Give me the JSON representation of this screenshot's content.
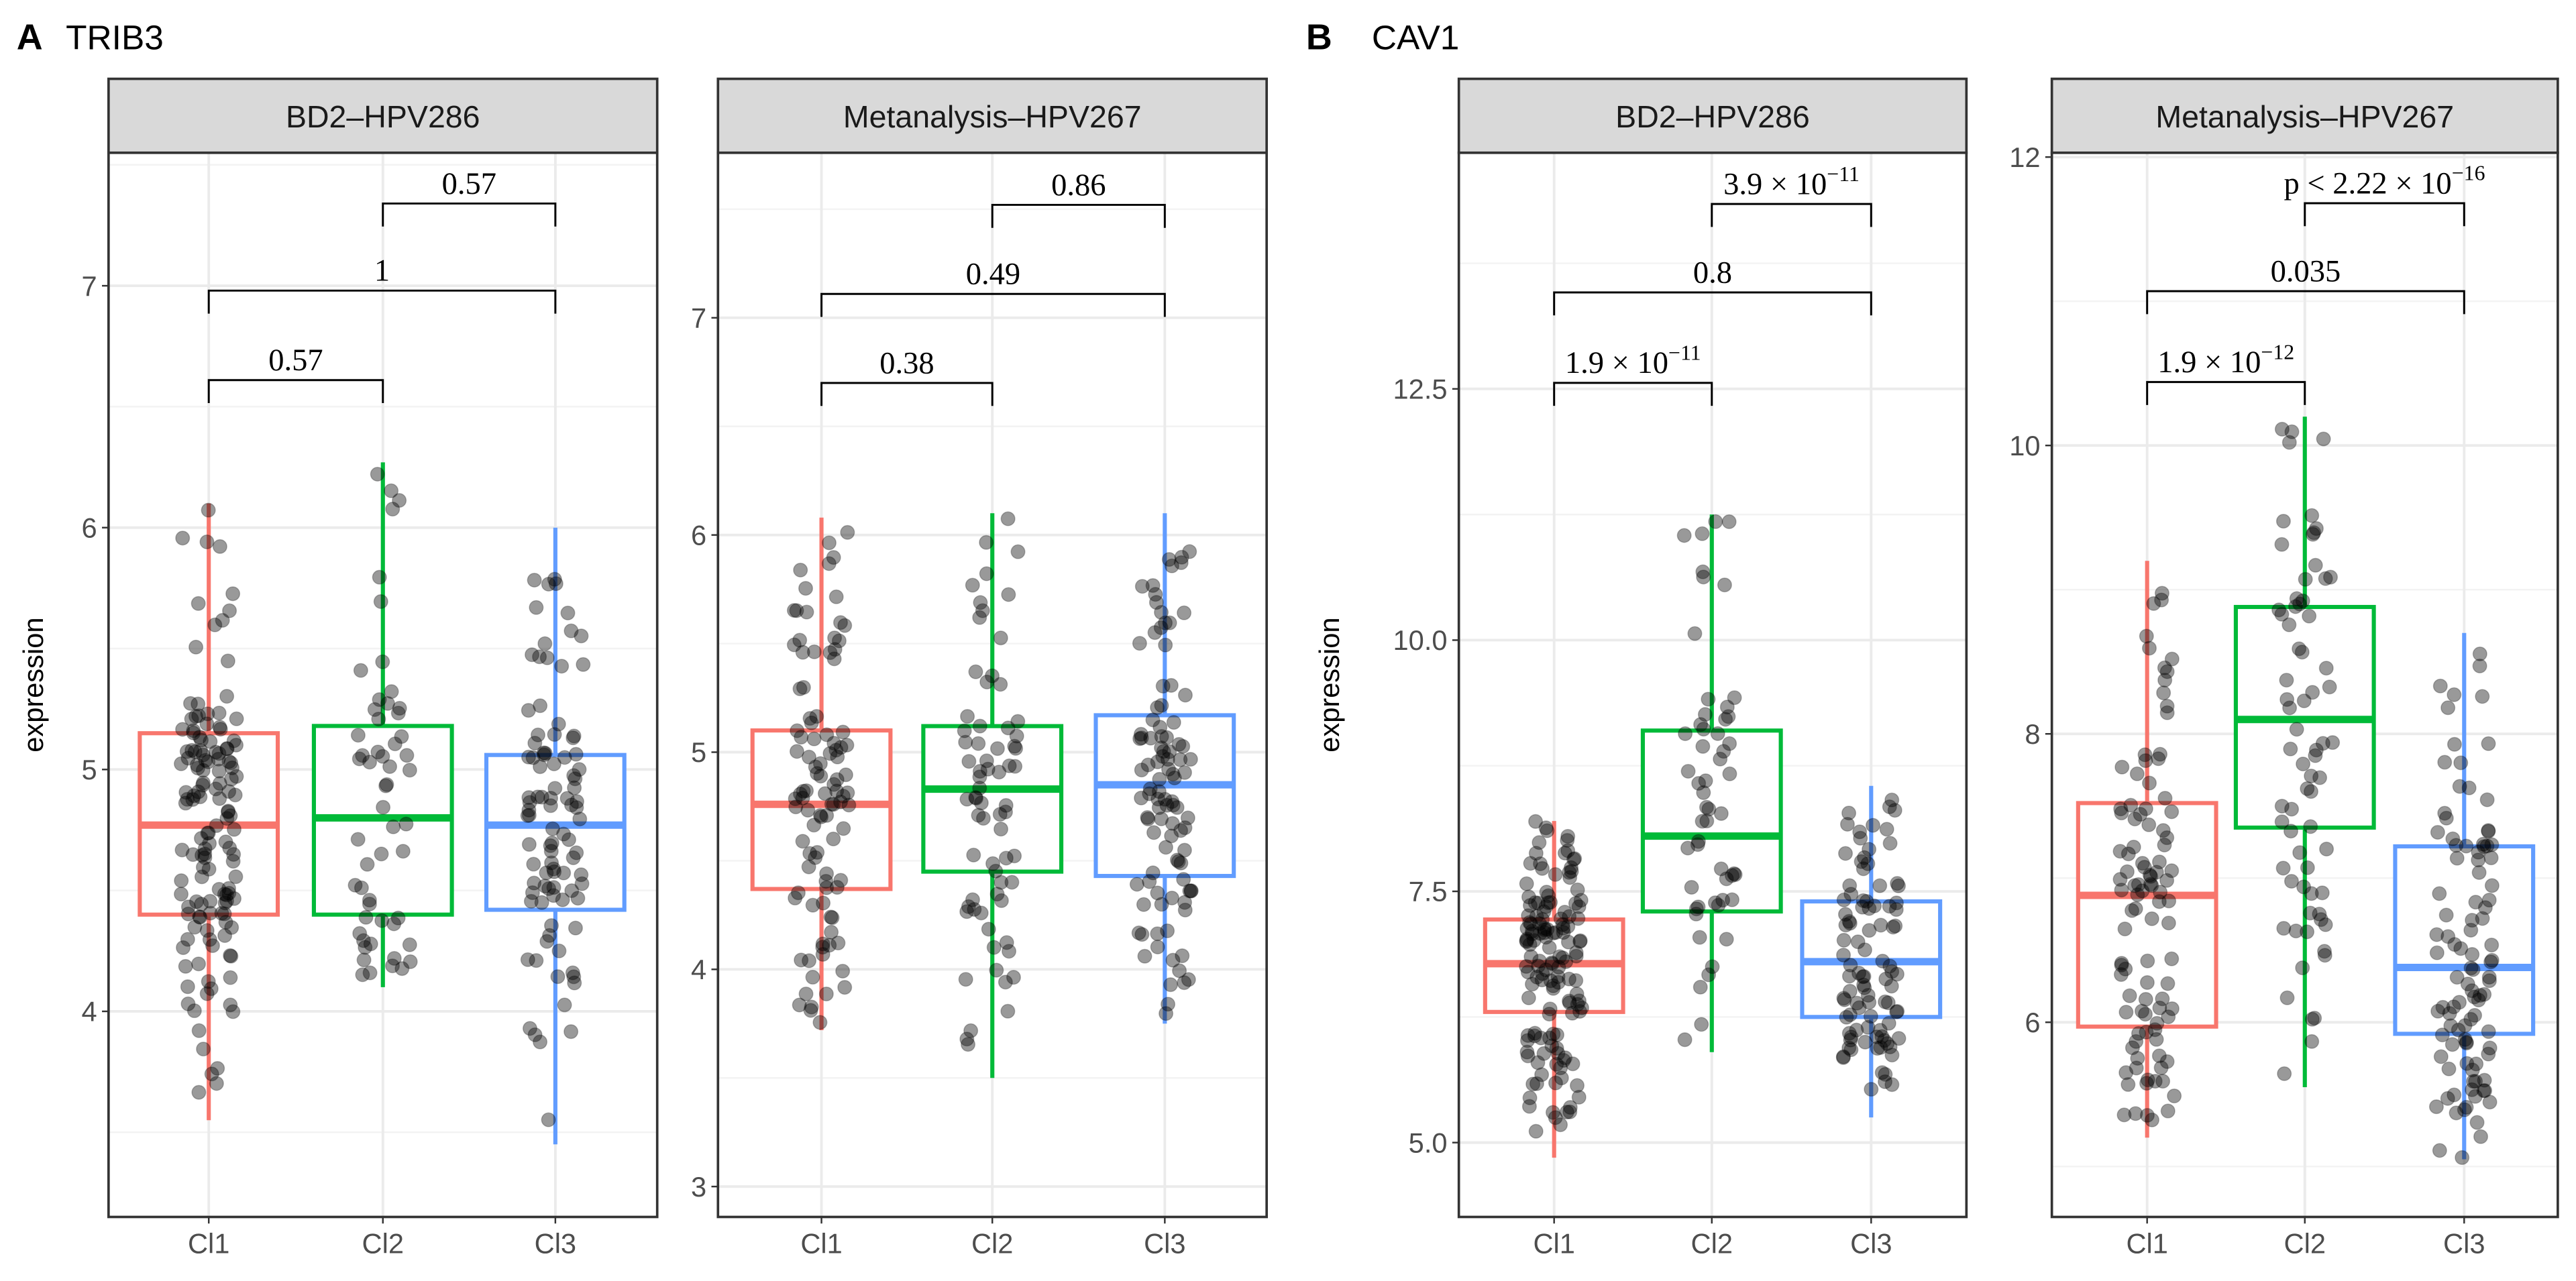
{
  "colors": {
    "Cl1": "#F8766D",
    "Cl2": "#00BA38",
    "Cl3": "#619CFF",
    "points": "#000000",
    "strip": "#D9D9D9",
    "grid": "#EBEBEB"
  },
  "chart_data": [
    {
      "type": "boxplot",
      "panel_letter": "A",
      "gene": "TRIB3",
      "ylabel": "expression",
      "facets": [
        {
          "title": "BD2–HPV286",
          "ylim": [
            3.15,
            7.55
          ],
          "yticks": [
            4,
            5,
            6,
            7
          ],
          "yticklabels": [
            "4",
            "5",
            "6",
            "7"
          ],
          "categories": [
            "Cl1",
            "Cl2",
            "Cl3"
          ],
          "boxes": [
            {
              "group": "Cl1",
              "min": 3.55,
              "q1": 4.4,
              "median": 4.77,
              "q3": 5.15,
              "max": 6.1,
              "n": 140
            },
            {
              "group": "Cl2",
              "min": 4.1,
              "q1": 4.4,
              "median": 4.8,
              "q3": 5.18,
              "max": 6.27,
              "n": 55
            },
            {
              "group": "Cl3",
              "min": 3.45,
              "q1": 4.42,
              "median": 4.77,
              "q3": 5.06,
              "max": 6.0,
              "n": 95
            }
          ],
          "comparisons": [
            {
              "from": "Cl1",
              "to": "Cl2",
              "y": 6.61,
              "label": "0.57",
              "exp": ""
            },
            {
              "from": "Cl1",
              "to": "Cl3",
              "y": 6.98,
              "label": "1",
              "exp": ""
            },
            {
              "from": "Cl2",
              "to": "Cl3",
              "y": 7.34,
              "label": "0.57",
              "exp": ""
            }
          ]
        },
        {
          "title": "Metanalysis–HPV267",
          "ylim": [
            2.86,
            7.76
          ],
          "yticks": [
            3,
            4,
            5,
            6,
            7
          ],
          "yticklabels": [
            "3",
            "4",
            "5",
            "6",
            "7"
          ],
          "categories": [
            "Cl1",
            "Cl2",
            "Cl3"
          ],
          "boxes": [
            {
              "group": "Cl1",
              "min": 3.72,
              "q1": 4.37,
              "median": 4.76,
              "q3": 5.1,
              "max": 6.08,
              "n": 100
            },
            {
              "group": "Cl2",
              "min": 3.5,
              "q1": 4.45,
              "median": 4.83,
              "q3": 5.12,
              "max": 6.1,
              "n": 70
            },
            {
              "group": "Cl3",
              "min": 3.75,
              "q1": 4.43,
              "median": 4.85,
              "q3": 5.17,
              "max": 6.1,
              "n": 100
            }
          ],
          "comparisons": [
            {
              "from": "Cl1",
              "to": "Cl2",
              "y": 6.7,
              "label": "0.38",
              "exp": ""
            },
            {
              "from": "Cl1",
              "to": "Cl3",
              "y": 7.11,
              "label": "0.49",
              "exp": ""
            },
            {
              "from": "Cl2",
              "to": "Cl3",
              "y": 7.52,
              "label": "0.86",
              "exp": ""
            }
          ]
        }
      ]
    },
    {
      "type": "boxplot",
      "panel_letter": "B",
      "gene": "CAV1",
      "ylabel": "expression",
      "facets": [
        {
          "title": "BD2–HPV286",
          "ylim": [
            4.26,
            14.85
          ],
          "yticks": [
            5,
            7.5,
            10,
            12.5
          ],
          "yticklabels": [
            "5.0",
            "7.5",
            "10.0",
            "12.5"
          ],
          "categories": [
            "Cl1",
            "Cl2",
            "Cl3"
          ],
          "boxes": [
            {
              "group": "Cl1",
              "min": 4.85,
              "q1": 6.3,
              "median": 6.78,
              "q3": 7.22,
              "max": 8.2,
              "n": 140
            },
            {
              "group": "Cl2",
              "min": 5.9,
              "q1": 7.3,
              "median": 8.05,
              "q3": 9.1,
              "max": 11.25,
              "n": 55
            },
            {
              "group": "Cl3",
              "min": 5.25,
              "q1": 6.25,
              "median": 6.8,
              "q3": 7.4,
              "max": 8.55,
              "n": 95
            }
          ],
          "comparisons": [
            {
              "from": "Cl1",
              "to": "Cl2",
              "y": 12.56,
              "label": "1.9 × 10",
              "exp": "−11"
            },
            {
              "from": "Cl1",
              "to": "Cl3",
              "y": 13.46,
              "label": "0.8",
              "exp": ""
            },
            {
              "from": "Cl2",
              "to": "Cl3",
              "y": 14.34,
              "label": "3.9 × 10",
              "exp": "−11"
            }
          ]
        },
        {
          "title": "Metanalysis–HPV267",
          "ylim": [
            4.65,
            12.03
          ],
          "yticks": [
            6,
            8,
            10,
            12
          ],
          "yticklabels": [
            "6",
            "8",
            "10",
            "12"
          ],
          "categories": [
            "Cl1",
            "Cl2",
            "Cl3"
          ],
          "boxes": [
            {
              "group": "Cl1",
              "min": 5.2,
              "q1": 5.97,
              "median": 6.88,
              "q3": 7.52,
              "max": 9.2,
              "n": 100
            },
            {
              "group": "Cl2",
              "min": 5.55,
              "q1": 7.35,
              "median": 8.1,
              "q3": 8.88,
              "max": 10.2,
              "n": 70
            },
            {
              "group": "Cl3",
              "min": 5.05,
              "q1": 5.92,
              "median": 6.38,
              "q3": 7.22,
              "max": 8.7,
              "n": 100
            }
          ],
          "comparisons": [
            {
              "from": "Cl1",
              "to": "Cl2",
              "y": 10.44,
              "label": "1.9 × 10",
              "exp": "−12"
            },
            {
              "from": "Cl1",
              "to": "Cl3",
              "y": 11.07,
              "label": "0.035",
              "exp": ""
            },
            {
              "from": "Cl2",
              "to": "Cl3",
              "y": 11.68,
              "label": "p < 2.22 × 10",
              "exp": "−16"
            }
          ]
        }
      ]
    }
  ]
}
